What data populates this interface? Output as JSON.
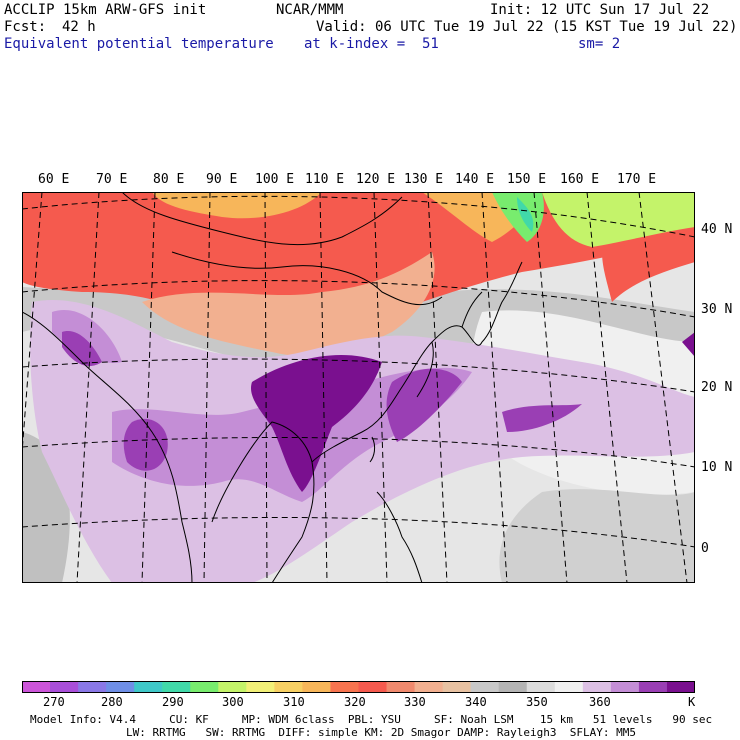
{
  "header": {
    "model": "ACCLIP 15km ARW-GFS init",
    "org": "NCAR/MMM",
    "init": "Init: 12 UTC Sun 17 Jul 22",
    "fcst_label": "Fcst:",
    "fcst_value": "42 h",
    "valid": "Valid: 06 UTC Tue 19 Jul 22 (15 KST Tue 19 Jul 22)",
    "field": "Equivalent potential temperature",
    "level": "at k-index =  51",
    "smooth": "sm= 2"
  },
  "map": {
    "lon_labels": [
      "60 E",
      "70 E",
      "80 E",
      "90 E",
      "100 E",
      "110 E",
      "120 E",
      "130 E",
      "140 E",
      "150 E",
      "160 E",
      "170 E"
    ],
    "lat_labels": [
      "40 N",
      "30 N",
      "20 N",
      "10 N",
      "0"
    ]
  },
  "colorbar": {
    "unit": "K",
    "tick_labels": [
      "270",
      "280",
      "290",
      "300",
      "310",
      "320",
      "330",
      "340",
      "350",
      "360"
    ],
    "colors": [
      "#cc55d9",
      "#a94fd9",
      "#8a78e6",
      "#6f8fe6",
      "#3fc8c8",
      "#41d9a9",
      "#78ec6e",
      "#c4f36a",
      "#f2f078",
      "#f7d064",
      "#f7b65a",
      "#f7744f",
      "#f55a4e",
      "#f08a6e",
      "#f2b090",
      "#e8c2a2",
      "#c8c8c8",
      "#b4b4b4",
      "#dcdcdc",
      "#f0f0f0",
      "#dcc0e4",
      "#c48ed6",
      "#9a3fb4",
      "#7a108f"
    ]
  },
  "footer": {
    "line1": "Model Info: V4.4     CU: KF     MP: WDM 6class  PBL: YSU     SF: Noah LSM    15 km   51 levels   90 sec",
    "line2": "LW: RRTMG   SW: RRTMG  DIFF: simple KM: 2D Smagor DAMP: Rayleigh3  SFLAY: MM5"
  }
}
